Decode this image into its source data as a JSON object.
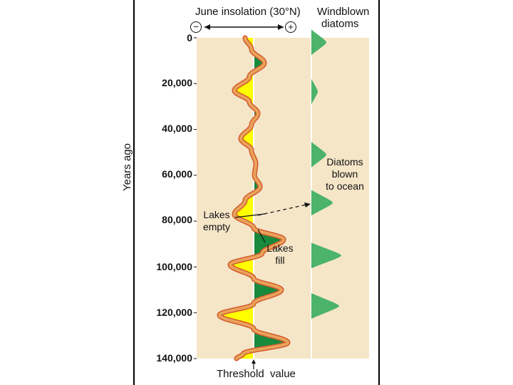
{
  "header": {
    "insolation_title": "June insolation (30°N)",
    "diatoms_title_line1": "Windblown",
    "diatoms_title_line2": "diatoms",
    "minus_symbol": "−",
    "plus_symbol": "+"
  },
  "axis": {
    "ylabel": "Years ago",
    "ticks": [
      "0",
      "20,000",
      "40,000",
      "60,000",
      "80,000",
      "100,000",
      "120,000",
      "140,000"
    ],
    "bottom_label": "Threshold  value"
  },
  "annotations": {
    "lakes_empty_line1": "Lakes",
    "lakes_empty_line2": "empty",
    "lakes_fill_line1": "Lakes",
    "lakes_fill_line2": "fill",
    "diatoms_blown_line1": "Diatoms",
    "diatoms_blown_line2": "blown",
    "diatoms_blown_line3": "to ocean"
  },
  "colors": {
    "panel": "#f5e6c8",
    "below_threshold": "#ffff00",
    "above_threshold": "#178a3c",
    "curve": "#e8a35a",
    "curve_edge": "#d45a2e",
    "diatom": "#4cb36a"
  },
  "chart_data": {
    "type": "line",
    "xlabel": "June insolation (30°N)",
    "ylabel": "Years ago",
    "ylim": [
      0,
      140000
    ],
    "threshold": 0,
    "insolation_series": {
      "years_ago": [
        0,
        5000,
        11000,
        17000,
        23000,
        28000,
        33000,
        38000,
        44000,
        49000,
        55000,
        60000,
        65000,
        71000,
        77000,
        83000,
        88000,
        94000,
        99000,
        105000,
        110000,
        116000,
        121000,
        127000,
        133000,
        138000,
        140000
      ],
      "relative_value": [
        -0.2,
        -0.05,
        0.25,
        -0.1,
        -0.45,
        -0.1,
        0.1,
        -0.05,
        -0.3,
        -0.05,
        0.05,
        0.02,
        0.15,
        -0.2,
        -0.45,
        0,
        0.7,
        0.2,
        -0.55,
        0,
        0.65,
        0,
        -0.8,
        0,
        0.8,
        -0.25,
        -0.4
      ]
    },
    "windblown_diatom_peaks_years_ago": [
      2000,
      23500,
      51000,
      72000,
      95000,
      117000
    ],
    "windblown_diatom_peak_relative": [
      0.35,
      0.15,
      0.35,
      0.5,
      0.7,
      0.65
    ]
  }
}
